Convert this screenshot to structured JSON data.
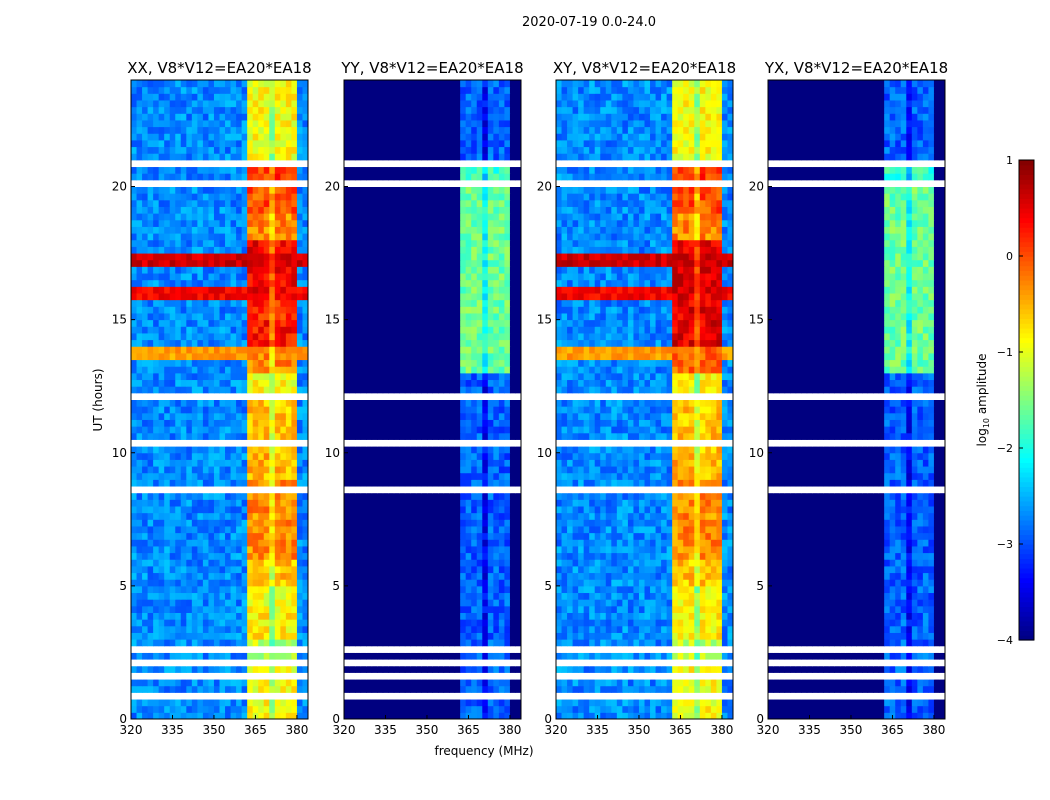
{
  "chart_data": {
    "type": "heatmap",
    "title": "2020-07-19 0.0-24.0",
    "xlabel": "frequency (MHz)",
    "ylabel": "UT (hours)",
    "xlim": [
      320,
      384
    ],
    "ylim": [
      0,
      24
    ],
    "xticks": [
      320,
      335,
      350,
      365,
      380
    ],
    "yticks": [
      0,
      5,
      10,
      15,
      20
    ],
    "colorbar": {
      "label": "log10 amplitude",
      "label_main": "log",
      "label_sub": "10",
      "label_rest": " amplitude",
      "range": [
        -4,
        1
      ],
      "ticks": [
        -4,
        -3,
        -2,
        -1,
        0,
        1
      ],
      "tick_labels": [
        "−4",
        "−3",
        "−2",
        "−1",
        "0",
        "1"
      ],
      "colormap": "jet"
    },
    "flagged_hours": [
      [
        0.85,
        0.95
      ],
      [
        1.25,
        1.35
      ],
      [
        1.6,
        1.68
      ],
      [
        2.05,
        2.3
      ],
      [
        2.6,
        2.68
      ],
      [
        3.0,
        3.06
      ],
      [
        3.4,
        3.46
      ],
      [
        3.9,
        3.96
      ],
      [
        4.45,
        4.62
      ],
      [
        7.0,
        7.06
      ],
      [
        7.5,
        7.56
      ],
      [
        8.55,
        8.65
      ],
      [
        9.75,
        9.85
      ],
      [
        10.3,
        10.5
      ],
      [
        10.9,
        11.1
      ],
      [
        12.0,
        12.2
      ],
      [
        13.2,
        13.26
      ],
      [
        14.0,
        14.06
      ],
      [
        17.7,
        17.78
      ],
      [
        18.2,
        18.26
      ],
      [
        19.0,
        19.06
      ],
      [
        20.1,
        20.25
      ],
      [
        20.8,
        20.88
      ],
      [
        21.05,
        21.12
      ],
      [
        22.0,
        22.06
      ],
      [
        22.4,
        22.46
      ]
    ],
    "channel_gaps_mhz": [
      366,
      371,
      376
    ],
    "band_mhz": [
      362,
      380
    ],
    "panels": [
      {
        "title": "XX, V8*V12=EA20*EA18",
        "background": -2.7,
        "band": -0.9,
        "hourly_offset": [
          0,
          0,
          -0.3,
          0.1,
          0,
          0.3,
          0.6,
          0.6,
          0.6,
          0.4,
          0.3,
          0.3,
          0,
          0.6,
          1.2,
          1.1,
          1.3,
          1.3,
          0.6,
          0.9,
          1.0,
          0,
          0,
          0
        ],
        "broadband_rfi_hours": [
          [
            13.3,
            13.9,
            -0.4
          ],
          [
            15.6,
            16.2,
            0.4
          ],
          [
            16.9,
            17.5,
            0.6
          ]
        ]
      },
      {
        "title": "YY, V8*V12=EA20*EA18",
        "background": -4.0,
        "band": -2.9,
        "hourly_offset": [
          0,
          0,
          0,
          0,
          0,
          0,
          0,
          0,
          0,
          0,
          0,
          0,
          0,
          1.3,
          1.3,
          1.3,
          1.3,
          1.3,
          1.3,
          1.3,
          1.0,
          0,
          0,
          0
        ],
        "broadband_rfi_hours": []
      },
      {
        "title": "XY, V8*V12=EA20*EA18",
        "background": -2.7,
        "band": -0.9,
        "hourly_offset": [
          0,
          0,
          -0.3,
          0.1,
          0,
          0.3,
          0.6,
          0.6,
          0.6,
          0.4,
          0.3,
          0.3,
          0,
          0.8,
          1.4,
          1.4,
          1.5,
          1.4,
          0.6,
          0.9,
          1.0,
          0,
          0,
          0
        ],
        "broadband_rfi_hours": [
          [
            13.3,
            13.9,
            -0.4
          ],
          [
            15.6,
            16.2,
            0.4
          ],
          [
            16.9,
            17.5,
            0.6
          ]
        ]
      },
      {
        "title": "YX, V8*V12=EA20*EA18",
        "background": -4.0,
        "band": -2.9,
        "hourly_offset": [
          0,
          0,
          0,
          0,
          0,
          0,
          0,
          0,
          0,
          0,
          0,
          0,
          0,
          1.3,
          1.3,
          1.3,
          1.3,
          1.3,
          1.3,
          1.3,
          1.0,
          0,
          0,
          0
        ],
        "broadband_rfi_hours": []
      }
    ]
  }
}
